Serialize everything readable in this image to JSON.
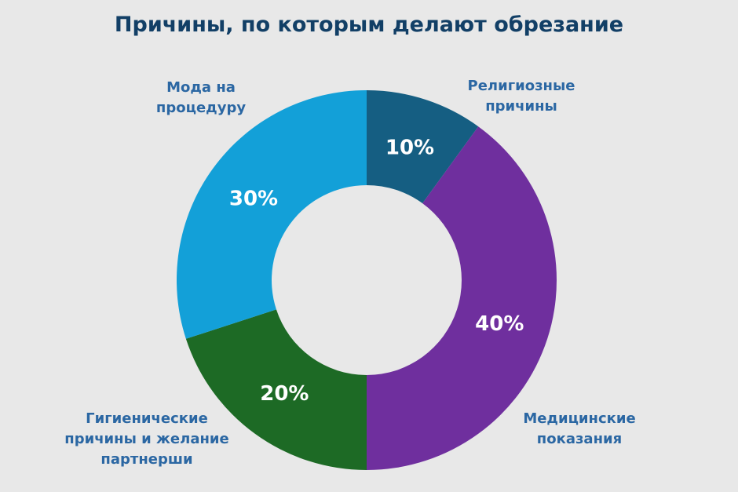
{
  "chart_data": {
    "type": "pie",
    "donut": true,
    "title": "Причины, по которым делают обрезание",
    "slices": [
      {
        "label": "Религиозные\nпричины",
        "value": 10,
        "value_label": "10%",
        "color": "#155e82"
      },
      {
        "label": "Медицинские\nпоказания",
        "value": 40,
        "value_label": "40%",
        "color": "#6f2f9e"
      },
      {
        "label": "Гигиенические\nпричины и желание\nпартнерши",
        "value": 20,
        "value_label": "20%",
        "color": "#1d6a25"
      },
      {
        "label": "Мода на\nпроцедуру",
        "value": 30,
        "value_label": "30%",
        "color": "#13a0d8"
      }
    ],
    "start_angle": "top",
    "direction": "clockwise",
    "background": "#e8e8e8"
  }
}
